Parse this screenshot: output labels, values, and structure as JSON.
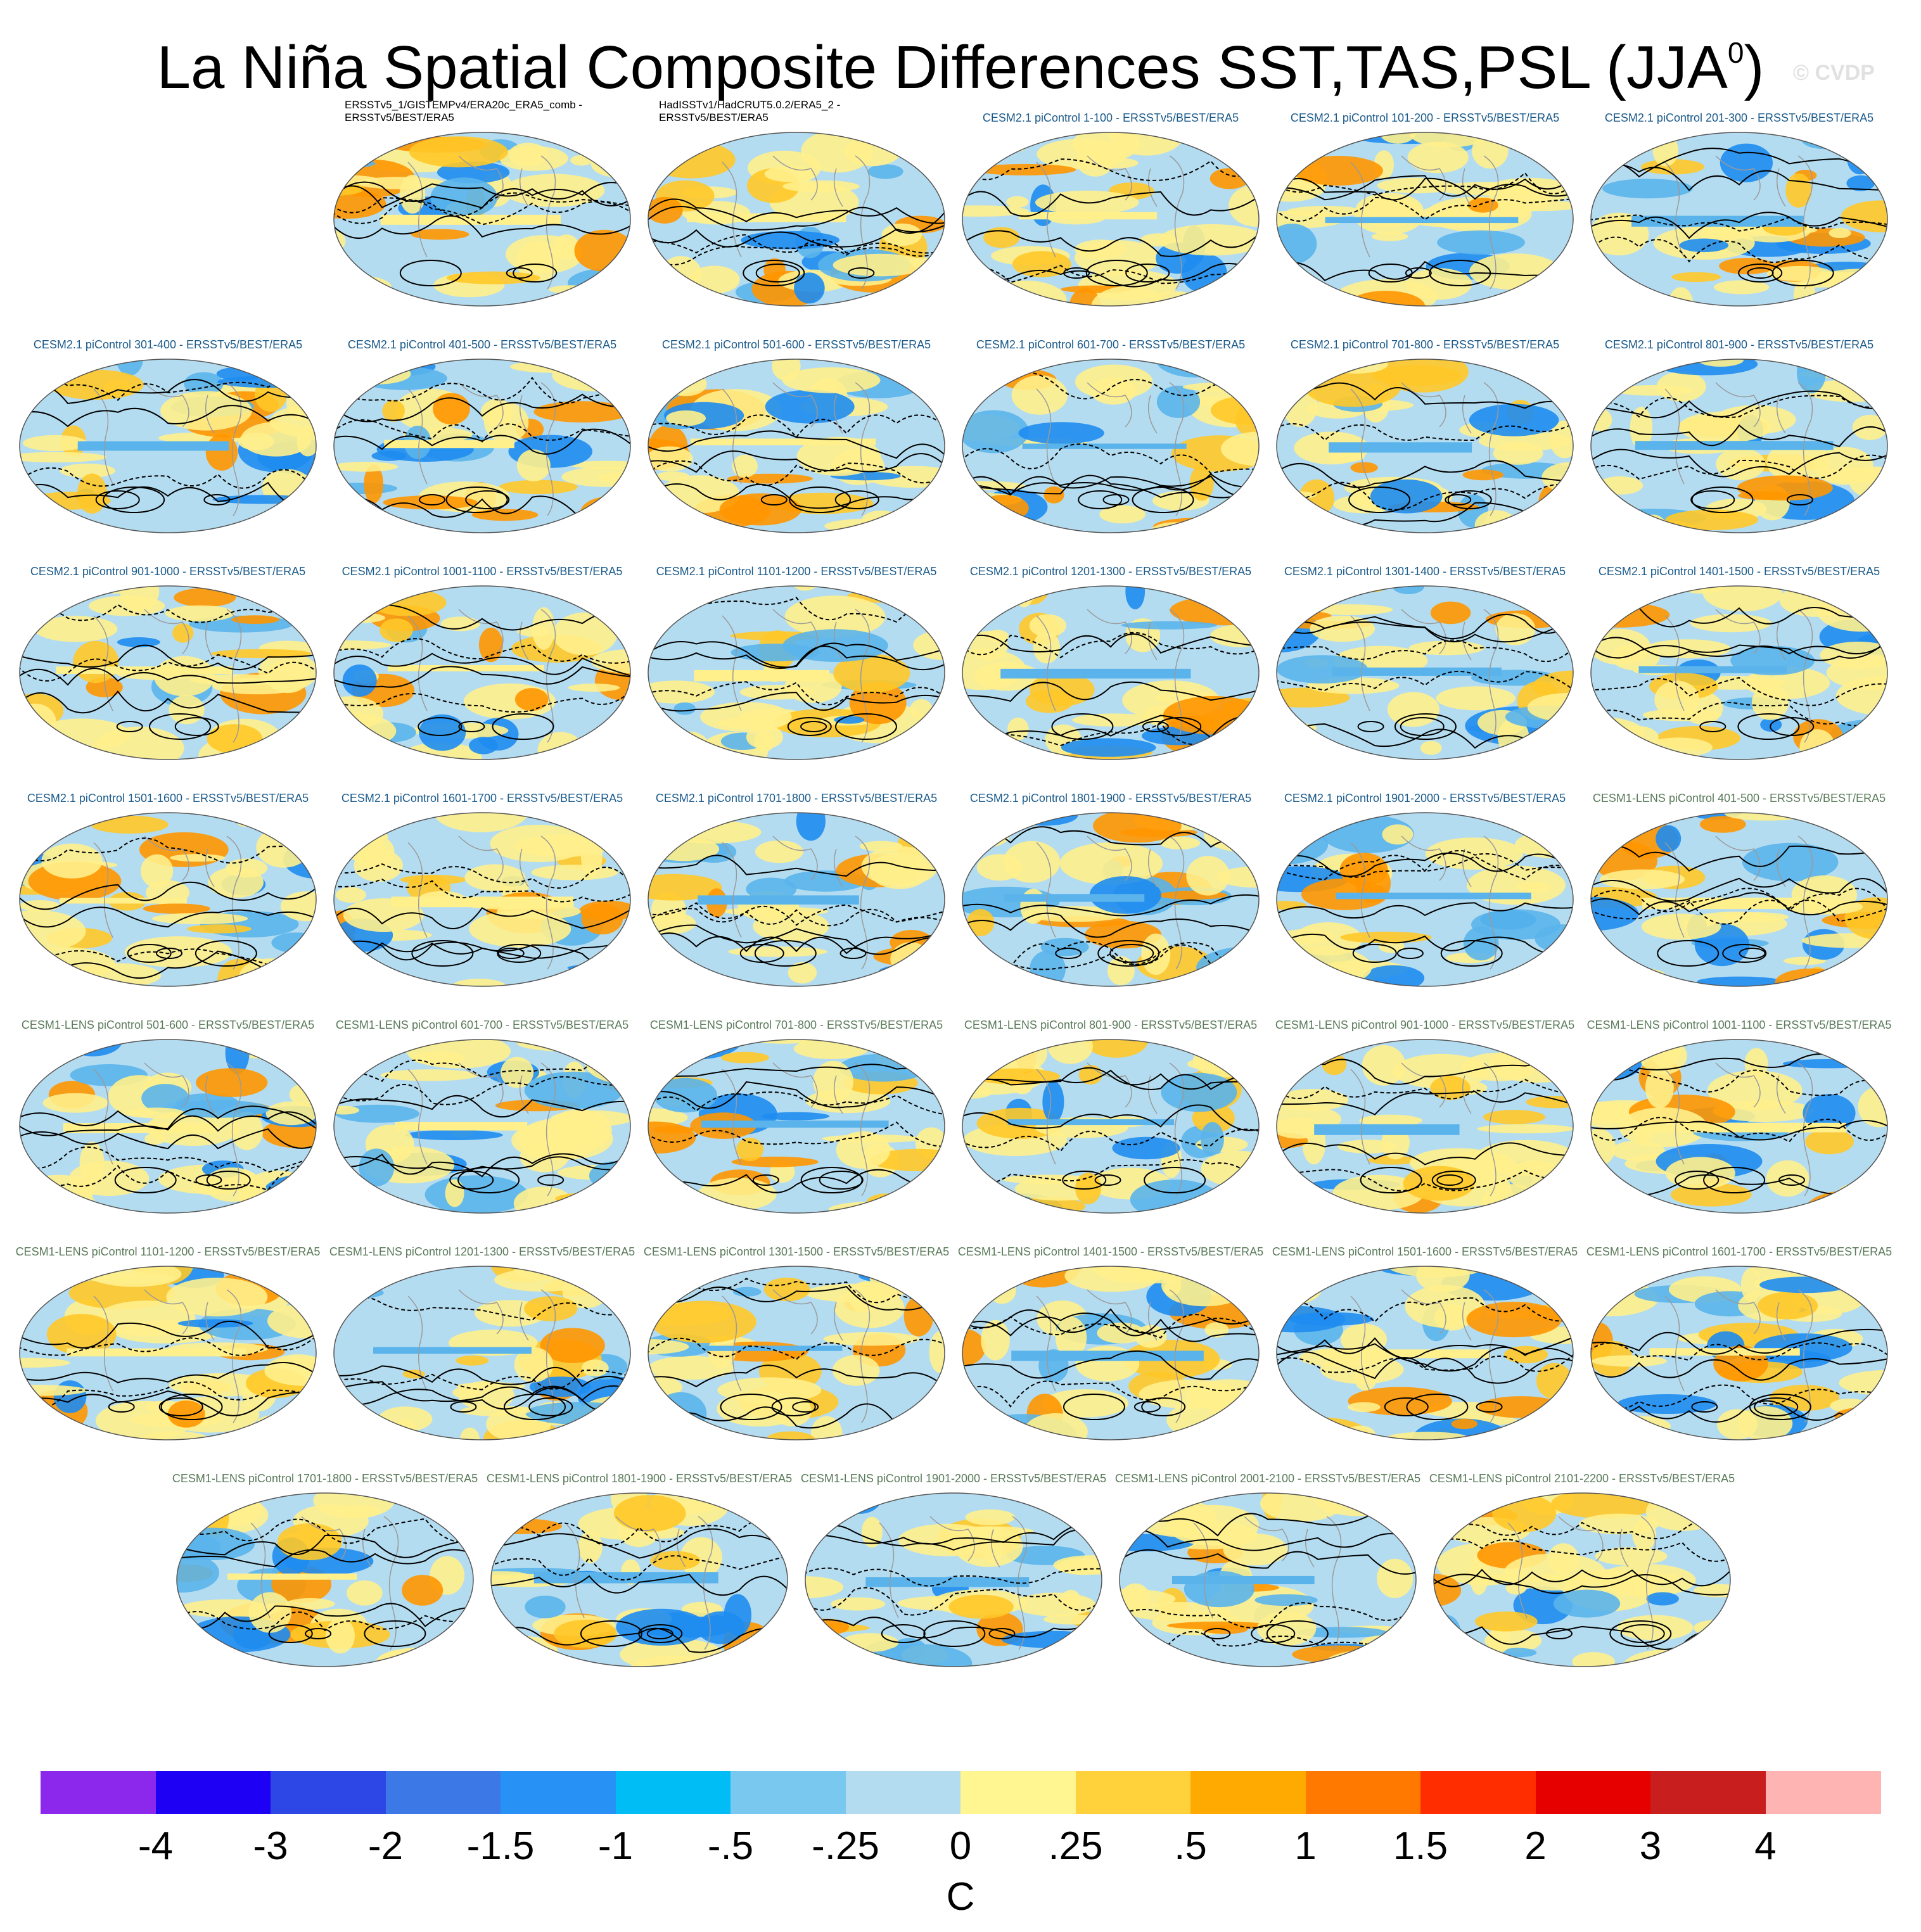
{
  "header": {
    "title": "La Niña Spatial Composite Differences SST,TAS,PSL (JJA",
    "title_superscript": "0",
    "title_close": ")",
    "watermark": "© CVDP"
  },
  "panels": [
    {
      "title": "ERSSTv5_1/GISTEMPv4/ERA20c_ERA5_comb - ERSSTv5/BEST/ERA5",
      "kind": "obs"
    },
    {
      "title": "HadISSTv1/HadCRUT5.0.2/ERA5_2 - ERSSTv5/BEST/ERA5",
      "kind": "obs"
    },
    {
      "title": "CESM2.1 piControl 1-100 - ERSSTv5/BEST/ERA5",
      "kind": "cesm2"
    },
    {
      "title": "CESM2.1 piControl 101-200 - ERSSTv5/BEST/ERA5",
      "kind": "cesm2"
    },
    {
      "title": "CESM2.1 piControl 201-300 - ERSSTv5/BEST/ERA5",
      "kind": "cesm2"
    },
    {
      "title": "CESM2.1 piControl 301-400 - ERSSTv5/BEST/ERA5",
      "kind": "cesm2"
    },
    {
      "title": "CESM2.1 piControl 401-500 - ERSSTv5/BEST/ERA5",
      "kind": "cesm2"
    },
    {
      "title": "CESM2.1 piControl 501-600 - ERSSTv5/BEST/ERA5",
      "kind": "cesm2"
    },
    {
      "title": "CESM2.1 piControl 601-700 - ERSSTv5/BEST/ERA5",
      "kind": "cesm2"
    },
    {
      "title": "CESM2.1 piControl 701-800 - ERSSTv5/BEST/ERA5",
      "kind": "cesm2"
    },
    {
      "title": "CESM2.1 piControl 801-900 - ERSSTv5/BEST/ERA5",
      "kind": "cesm2"
    },
    {
      "title": "CESM2.1 piControl 901-1000 - ERSSTv5/BEST/ERA5",
      "kind": "cesm2"
    },
    {
      "title": "CESM2.1 piControl 1001-1100 - ERSSTv5/BEST/ERA5",
      "kind": "cesm2"
    },
    {
      "title": "CESM2.1 piControl 1101-1200 - ERSSTv5/BEST/ERA5",
      "kind": "cesm2"
    },
    {
      "title": "CESM2.1 piControl 1201-1300 - ERSSTv5/BEST/ERA5",
      "kind": "cesm2"
    },
    {
      "title": "CESM2.1 piControl 1301-1400 - ERSSTv5/BEST/ERA5",
      "kind": "cesm2"
    },
    {
      "title": "CESM2.1 piControl 1401-1500 - ERSSTv5/BEST/ERA5",
      "kind": "cesm2"
    },
    {
      "title": "CESM2.1 piControl 1501-1600 - ERSSTv5/BEST/ERA5",
      "kind": "cesm2"
    },
    {
      "title": "CESM2.1 piControl 1601-1700 - ERSSTv5/BEST/ERA5",
      "kind": "cesm2"
    },
    {
      "title": "CESM2.1 piControl 1701-1800 - ERSSTv5/BEST/ERA5",
      "kind": "cesm2"
    },
    {
      "title": "CESM2.1 piControl 1801-1900 - ERSSTv5/BEST/ERA5",
      "kind": "cesm2"
    },
    {
      "title": "CESM2.1 piControl 1901-2000 - ERSSTv5/BEST/ERA5",
      "kind": "cesm2"
    },
    {
      "title": "CESM1-LENS piControl 401-500 - ERSSTv5/BEST/ERA5",
      "kind": "cesm1"
    },
    {
      "title": "CESM1-LENS piControl 501-600 - ERSSTv5/BEST/ERA5",
      "kind": "cesm1"
    },
    {
      "title": "CESM1-LENS piControl 601-700 - ERSSTv5/BEST/ERA5",
      "kind": "cesm1"
    },
    {
      "title": "CESM1-LENS piControl 701-800 - ERSSTv5/BEST/ERA5",
      "kind": "cesm1"
    },
    {
      "title": "CESM1-LENS piControl 801-900 - ERSSTv5/BEST/ERA5",
      "kind": "cesm1"
    },
    {
      "title": "CESM1-LENS piControl 901-1000 - ERSSTv5/BEST/ERA5",
      "kind": "cesm1"
    },
    {
      "title": "CESM1-LENS piControl 1001-1100 - ERSSTv5/BEST/ERA5",
      "kind": "cesm1"
    },
    {
      "title": "CESM1-LENS piControl 1101-1200 - ERSSTv5/BEST/ERA5",
      "kind": "cesm1"
    },
    {
      "title": "CESM1-LENS piControl 1201-1300 - ERSSTv5/BEST/ERA5",
      "kind": "cesm1"
    },
    {
      "title": "CESM1-LENS piControl 1301-1500 - ERSSTv5/BEST/ERA5",
      "kind": "cesm1"
    },
    {
      "title": "CESM1-LENS piControl 1401-1500 - ERSSTv5/BEST/ERA5",
      "kind": "cesm1"
    },
    {
      "title": "CESM1-LENS piControl 1501-1600 - ERSSTv5/BEST/ERA5",
      "kind": "cesm1"
    },
    {
      "title": "CESM1-LENS piControl 1601-1700 - ERSSTv5/BEST/ERA5",
      "kind": "cesm1"
    },
    {
      "title": "CESM1-LENS piControl 1701-1800 - ERSSTv5/BEST/ERA5",
      "kind": "cesm1"
    },
    {
      "title": "CESM1-LENS piControl 1801-1900 - ERSSTv5/BEST/ERA5",
      "kind": "cesm1"
    },
    {
      "title": "CESM1-LENS piControl 1901-2000 - ERSSTv5/BEST/ERA5",
      "kind": "cesm1"
    },
    {
      "title": "CESM1-LENS piControl 2001-2100 - ERSSTv5/BEST/ERA5",
      "kind": "cesm1"
    },
    {
      "title": "CESM1-LENS piControl 2101-2200 - ERSSTv5/BEST/ERA5",
      "kind": "cesm1"
    }
  ],
  "panel_title_colors": {
    "obs": "#000000",
    "cesm2": "#1a5a8a",
    "cesm1": "#5a7a5a"
  },
  "map_colors": {
    "ocean_neg": "#b4dcf0",
    "neg_mid": "#5ab4eb",
    "neg_strong": "#1e8cf0",
    "pos_weak": "#fff08c",
    "pos_mid": "#ffc828",
    "pos_strong": "#ff9600",
    "land_outline": "#9a9a9a",
    "contour": "#000000"
  },
  "colorbar": {
    "labels": [
      "-4",
      "-3",
      "-2",
      "-1.5",
      "-1",
      "-.5",
      "-.25",
      "0",
      ".25",
      ".5",
      "1",
      "1.5",
      "2",
      "3",
      "4"
    ],
    "colors": [
      "#8c28eb",
      "#1e00f5",
      "#2d46e6",
      "#3c78e6",
      "#2891f5",
      "#00bef5",
      "#78c8f0",
      "#b4dcf0",
      "#fff591",
      "#ffd23c",
      "#ffaa00",
      "#ff7800",
      "#ff2d00",
      "#e60000",
      "#c81e1e",
      "#ffb4b4"
    ],
    "units": "C"
  }
}
